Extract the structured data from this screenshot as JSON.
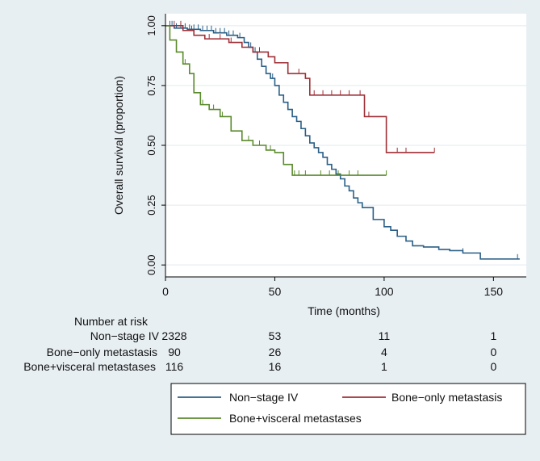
{
  "chart_data": {
    "type": "line",
    "step": true,
    "title": "",
    "xlabel": "Time (months)",
    "ylabel": "Overall survival (proportion)",
    "xlim": [
      0,
      165
    ],
    "ylim": [
      -0.05,
      1.05
    ],
    "xticks": [
      0,
      50,
      100,
      150
    ],
    "yticks": [
      0.0,
      0.25,
      0.5,
      0.75,
      1.0
    ],
    "ytick_labels": [
      "0.00",
      "0.25",
      "0.50",
      "0.75",
      "1.00"
    ],
    "grid": "horizontal",
    "series": [
      {
        "name": "Non−stage IV",
        "color": "#2a5f86",
        "x": [
          0,
          4,
          10,
          16,
          22,
          28,
          33,
          36,
          38,
          40,
          42,
          44,
          46,
          48,
          50,
          52,
          54,
          56,
          58,
          60,
          62,
          64,
          66,
          68,
          70,
          72,
          74,
          76,
          78,
          80,
          82,
          84,
          86,
          88,
          90,
          95,
          100,
          103,
          106,
          110,
          113,
          118,
          125,
          130,
          136,
          140,
          144,
          162
        ],
        "y": [
          1.0,
          0.99,
          0.985,
          0.98,
          0.97,
          0.96,
          0.95,
          0.93,
          0.91,
          0.89,
          0.86,
          0.83,
          0.8,
          0.78,
          0.75,
          0.71,
          0.68,
          0.65,
          0.62,
          0.6,
          0.57,
          0.54,
          0.51,
          0.49,
          0.47,
          0.45,
          0.42,
          0.4,
          0.38,
          0.36,
          0.33,
          0.31,
          0.28,
          0.26,
          0.24,
          0.19,
          0.16,
          0.145,
          0.12,
          0.1,
          0.08,
          0.075,
          0.065,
          0.06,
          0.05,
          0.05,
          0.025,
          0.025
        ],
        "censor_x": [
          2,
          3,
          5,
          7,
          9,
          11,
          13,
          15,
          17,
          19,
          21,
          23,
          25,
          27,
          29,
          31,
          34,
          36,
          39,
          41,
          44,
          46,
          49,
          52,
          136,
          161
        ]
      },
      {
        "name": "Bone−only metastasis",
        "color": "#9e2f36",
        "x": [
          0,
          8,
          13,
          18,
          29,
          35,
          40,
          47,
          50,
          56,
          64,
          66,
          91,
          101,
          123
        ],
        "y": [
          1.0,
          0.98,
          0.96,
          0.945,
          0.93,
          0.91,
          0.89,
          0.87,
          0.845,
          0.8,
          0.78,
          0.71,
          0.62,
          0.47,
          0.47
        ],
        "censor_x": [
          4,
          7,
          12,
          20,
          25,
          30,
          43,
          61,
          68,
          72,
          76,
          80,
          84,
          89,
          93,
          106,
          110,
          123
        ]
      },
      {
        "name": "Bone+visceral metastases",
        "color": "#5a8a2c",
        "x": [
          0,
          2,
          5,
          8,
          11,
          13,
          16,
          20,
          25,
          30,
          35,
          40,
          46,
          50,
          54,
          58,
          101
        ],
        "y": [
          1.0,
          0.94,
          0.89,
          0.84,
          0.8,
          0.72,
          0.67,
          0.65,
          0.62,
          0.56,
          0.52,
          0.5,
          0.48,
          0.47,
          0.42,
          0.375,
          0.375
        ],
        "censor_x": [
          9,
          13,
          17,
          22,
          26,
          30,
          35,
          38,
          43,
          48,
          59,
          61,
          64,
          71,
          75,
          79,
          84,
          88,
          101
        ]
      }
    ],
    "risk_table": {
      "header": "Number at risk",
      "time_points": [
        0,
        50,
        100,
        150
      ],
      "rows": [
        {
          "label": "Non−stage IV",
          "values": [
            "2328",
            "53",
            "11",
            "1"
          ]
        },
        {
          "label": "Bone−only metastasis",
          "values": [
            "90",
            "26",
            "4",
            "0"
          ]
        },
        {
          "label": "Bone+visceral metastases",
          "values": [
            "116",
            "16",
            "1",
            "0"
          ]
        }
      ]
    },
    "legend_position": "bottom-right"
  }
}
